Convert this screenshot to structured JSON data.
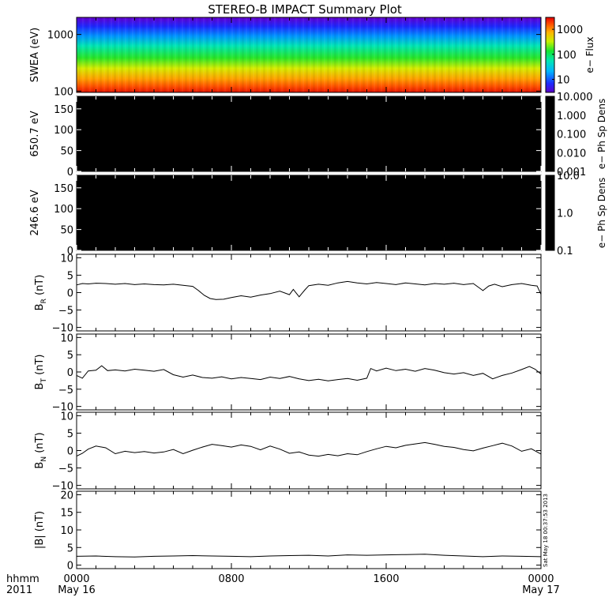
{
  "title": "STEREO-B IMPACT Summary Plot",
  "time_axis": {
    "row1_prefix": "hhmm",
    "row2_prefix": "2011",
    "ticks": [
      {
        "t": 0,
        "label": "0000",
        "date": "May 16"
      },
      {
        "t": 8,
        "label": "0800",
        "date": ""
      },
      {
        "t": 16,
        "label": "1600",
        "date": ""
      },
      {
        "t": 24,
        "label": "0000",
        "date": "May 17"
      }
    ],
    "range_hours": [
      0,
      24
    ]
  },
  "stamp": "Sat May 18 00:37:53 2013",
  "chart_data": [
    {
      "type": "heatmap",
      "id": "swea",
      "ylabel": "SWEA (eV)",
      "yscale": "log",
      "ylim": [
        95,
        2000
      ],
      "yticks": [
        {
          "v": 100,
          "label": "100"
        },
        {
          "v": 1000,
          "label": "1000"
        }
      ],
      "colorbar": {
        "title": "e− Flux",
        "scale": "log",
        "range": [
          3,
          3000
        ],
        "ticks": [
          {
            "v": 10,
            "label": "10"
          },
          {
            "v": 100,
            "label": "100"
          },
          {
            "v": 1000,
            "label": "1000"
          }
        ]
      },
      "energy_flux_profile": [
        {
          "energy": 100,
          "flux": 1800
        },
        {
          "energy": 150,
          "flux": 1000
        },
        {
          "energy": 250,
          "flux": 300
        },
        {
          "energy": 400,
          "flux": 100
        },
        {
          "energy": 650,
          "flux": 40
        },
        {
          "energy": 1000,
          "flux": 14
        },
        {
          "energy": 1500,
          "flux": 6
        },
        {
          "energy": 2000,
          "flux": 4
        }
      ]
    },
    {
      "type": "heatmap",
      "id": "pad650",
      "ylabel": "650.7 eV",
      "yscale": "linear",
      "ylim": [
        0,
        180
      ],
      "yticks": [
        {
          "v": 0,
          "label": "0"
        },
        {
          "v": 50,
          "label": "50"
        },
        {
          "v": 100,
          "label": "100"
        },
        {
          "v": 150,
          "label": "150"
        }
      ],
      "fill": "#000000",
      "colorbar": {
        "title": "e− Ph Sp Dens",
        "scale": "log",
        "range": [
          0.001,
          10
        ],
        "ticks": [
          {
            "v": 10,
            "label": "10.000"
          },
          {
            "v": 1,
            "label": "1.000"
          },
          {
            "v": 0.1,
            "label": "0.100"
          },
          {
            "v": 0.01,
            "label": "0.010"
          },
          {
            "v": 0.001,
            "label": "0.001"
          }
        ]
      }
    },
    {
      "type": "heatmap",
      "id": "pad246",
      "ylabel": "246.6 eV",
      "yscale": "linear",
      "ylim": [
        0,
        180
      ],
      "yticks": [
        {
          "v": 0,
          "label": "0"
        },
        {
          "v": 50,
          "label": "50"
        },
        {
          "v": 100,
          "label": "100"
        },
        {
          "v": 150,
          "label": "150"
        }
      ],
      "fill": "#000000",
      "colorbar": {
        "title": "e− Ph Sp Dens",
        "scale": "log",
        "range": [
          0.1,
          10
        ],
        "ticks": [
          {
            "v": 10,
            "label": "10.0"
          },
          {
            "v": 1,
            "label": "1.0"
          },
          {
            "v": 0.1,
            "label": "0.1"
          }
        ]
      }
    },
    {
      "type": "line",
      "id": "br",
      "ylabel_main": "B",
      "ylabel_sub": "R",
      "ylabel_unit": " (nT)",
      "ylim": [
        -11,
        11
      ],
      "yticks": [
        {
          "v": -10,
          "label": "−10"
        },
        {
          "v": -5,
          "label": "−5"
        },
        {
          "v": 0,
          "label": "0"
        },
        {
          "v": 5,
          "label": "5"
        },
        {
          "v": 10,
          "label": "10"
        }
      ],
      "x": [
        0,
        0.3,
        0.6,
        1,
        1.5,
        2,
        2.5,
        3,
        3.5,
        4,
        4.5,
        5,
        5.5,
        6,
        6.3,
        6.6,
        6.9,
        7.2,
        7.6,
        8,
        8.5,
        9,
        9.5,
        10,
        10.5,
        11,
        11.2,
        11.5,
        11.8,
        12,
        12.5,
        13,
        13.5,
        14,
        14.5,
        15,
        15.5,
        16,
        16.5,
        17,
        17.5,
        18,
        18.5,
        19,
        19.5,
        20,
        20.5,
        21,
        21.3,
        21.6,
        22,
        22.5,
        23,
        23.5,
        23.8,
        24
      ],
      "y": [
        2.2,
        2.6,
        2.5,
        2.7,
        2.6,
        2.4,
        2.6,
        2.3,
        2.5,
        2.3,
        2.2,
        2.4,
        2.1,
        1.8,
        0.6,
        -0.8,
        -1.7,
        -2.0,
        -1.9,
        -1.4,
        -0.9,
        -1.3,
        -0.7,
        -0.3,
        0.4,
        -0.6,
        0.9,
        -1.2,
        0.8,
        2.0,
        2.4,
        2.1,
        2.8,
        3.2,
        2.8,
        2.5,
        2.9,
        2.6,
        2.3,
        2.8,
        2.5,
        2.2,
        2.6,
        2.4,
        2.7,
        2.3,
        2.6,
        0.6,
        1.9,
        2.4,
        1.7,
        2.3,
        2.6,
        2.1,
        1.9,
        -0.5
      ]
    },
    {
      "type": "line",
      "id": "bt",
      "ylabel_main": "B",
      "ylabel_sub": "T",
      "ylabel_unit": " (nT)",
      "ylim": [
        -11,
        11
      ],
      "yticks": [
        {
          "v": -10,
          "label": "−10"
        },
        {
          "v": -5,
          "label": "−5"
        },
        {
          "v": 0,
          "label": "0"
        },
        {
          "v": 5,
          "label": "5"
        },
        {
          "v": 10,
          "label": "10"
        }
      ],
      "x": [
        0,
        0.3,
        0.6,
        1,
        1.3,
        1.6,
        2,
        2.5,
        3,
        3.5,
        4,
        4.5,
        5,
        5.5,
        6,
        6.5,
        7,
        7.5,
        8,
        8.5,
        9,
        9.5,
        10,
        10.5,
        11,
        11.5,
        12,
        12.5,
        13,
        13.5,
        14,
        14.5,
        15,
        15.2,
        15.5,
        16,
        16.5,
        17,
        17.5,
        18,
        18.5,
        19,
        19.5,
        20,
        20.5,
        21,
        21.5,
        22,
        22.5,
        23,
        23.4,
        23.7,
        24
      ],
      "y": [
        -1.0,
        -1.8,
        0.3,
        0.5,
        1.8,
        0.4,
        0.6,
        0.3,
        0.8,
        0.5,
        0.2,
        0.7,
        -0.8,
        -1.5,
        -0.9,
        -1.6,
        -1.8,
        -1.4,
        -2.0,
        -1.6,
        -1.9,
        -2.2,
        -1.5,
        -1.9,
        -1.3,
        -2.0,
        -2.5,
        -2.1,
        -2.6,
        -2.2,
        -1.9,
        -2.4,
        -1.8,
        1.0,
        0.3,
        1.1,
        0.4,
        0.8,
        0.2,
        1.0,
        0.5,
        -0.2,
        -0.6,
        -0.2,
        -1.0,
        -0.4,
        -2.0,
        -1.0,
        -0.3,
        0.7,
        1.6,
        0.8,
        -0.6
      ]
    },
    {
      "type": "line",
      "id": "bn",
      "ylabel_main": "B",
      "ylabel_sub": "N",
      "ylabel_unit": " (nT)",
      "ylim": [
        -11,
        11
      ],
      "yticks": [
        {
          "v": -10,
          "label": "−10"
        },
        {
          "v": -5,
          "label": "−5"
        },
        {
          "v": 0,
          "label": "0"
        },
        {
          "v": 5,
          "label": "5"
        },
        {
          "v": 10,
          "label": "10"
        }
      ],
      "x": [
        0,
        0.3,
        0.6,
        1,
        1.5,
        2,
        2.5,
        3,
        3.5,
        4,
        4.5,
        5,
        5.5,
        6,
        6.5,
        7,
        7.5,
        8,
        8.5,
        9,
        9.5,
        10,
        10.5,
        11,
        11.5,
        12,
        12.5,
        13,
        13.5,
        14,
        14.5,
        15,
        15.5,
        16,
        16.5,
        17,
        17.5,
        18,
        18.5,
        19,
        19.5,
        20,
        20.5,
        21,
        21.5,
        22,
        22.5,
        23,
        23.5,
        24
      ],
      "y": [
        -1.6,
        -0.8,
        0.4,
        1.3,
        0.8,
        -0.9,
        -0.2,
        -0.6,
        -0.3,
        -0.7,
        -0.4,
        0.3,
        -0.9,
        0.1,
        1.0,
        1.8,
        1.4,
        1.0,
        1.6,
        1.2,
        0.2,
        1.3,
        0.4,
        -0.8,
        -0.4,
        -1.3,
        -1.6,
        -1.1,
        -1.5,
        -0.9,
        -1.2,
        -0.3,
        0.5,
        1.2,
        0.8,
        1.5,
        1.9,
        2.3,
        1.8,
        1.2,
        0.9,
        0.3,
        -0.1,
        0.7,
        1.4,
        2.1,
        1.3,
        -0.2,
        0.5,
        -1.0
      ]
    },
    {
      "type": "line",
      "id": "bmag",
      "ylabel_main": "|B| (nT)",
      "ylabel_sub": "",
      "ylabel_unit": "",
      "ylim": [
        -1,
        21
      ],
      "yticks": [
        {
          "v": 0,
          "label": "0"
        },
        {
          "v": 5,
          "label": "5"
        },
        {
          "v": 10,
          "label": "10"
        },
        {
          "v": 15,
          "label": "15"
        },
        {
          "v": 20,
          "label": "20"
        }
      ],
      "x": [
        0,
        1,
        2,
        3,
        4,
        5,
        6,
        7,
        8,
        9,
        10,
        11,
        12,
        13,
        14,
        15,
        16,
        17,
        18,
        19,
        20,
        21,
        22,
        23,
        24
      ],
      "y": [
        2.5,
        2.6,
        2.4,
        2.3,
        2.5,
        2.6,
        2.7,
        2.6,
        2.5,
        2.4,
        2.6,
        2.7,
        2.8,
        2.6,
        2.9,
        2.8,
        2.9,
        3.0,
        3.1,
        2.8,
        2.6,
        2.4,
        2.6,
        2.5,
        2.4
      ]
    }
  ]
}
